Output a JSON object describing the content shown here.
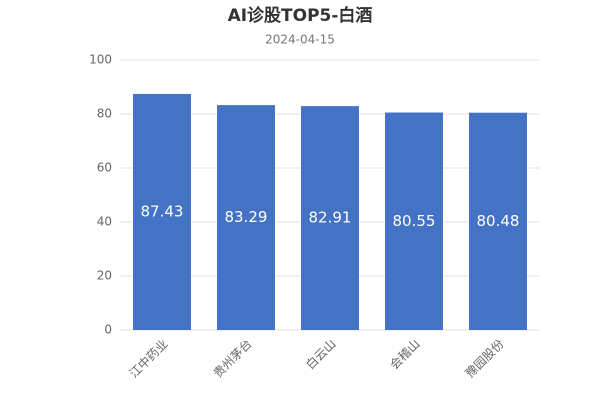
{
  "chart_data": {
    "type": "bar",
    "title": "AI诊股TOP5-白酒",
    "subtitle": "2024-04-15",
    "categories": [
      "江中药业",
      "贵州茅台",
      "白云山",
      "会稽山",
      "豫园股份"
    ],
    "values": [
      87.43,
      83.29,
      82.91,
      80.55,
      80.48
    ],
    "color": "#4472c4",
    "ylim": [
      0,
      100
    ],
    "yticks": [
      0,
      20,
      40,
      60,
      80,
      100
    ],
    "grid": true
  }
}
